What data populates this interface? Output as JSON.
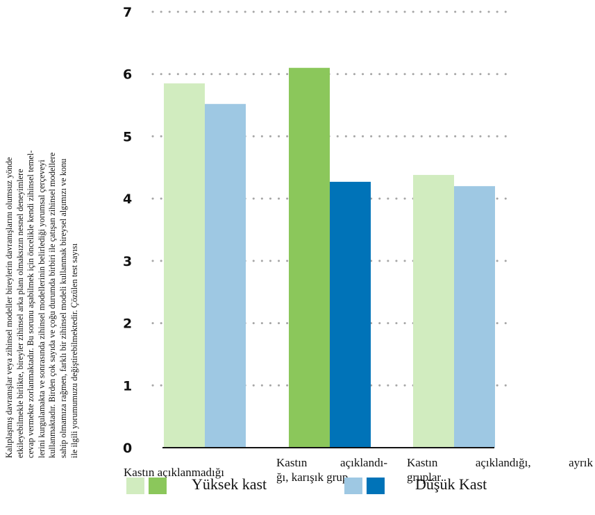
{
  "side_text": {
    "lines": [
      "Kalıplaşmış davranışlar veya zihinsel modeller bireylerin davranışlarını olumsuz yönde",
      "etkileyebilmekle birlikte, bireyler zihinsel arka planı olmaksızın nesnel deneyimlere",
      "cevap vermekte zorlanmaktadır. Bu sorunu aşabilmek için öncelikle kendi zihinsel temel-",
      "lerini kurgulamakta ve sonrasında zihinsel modellerinin belirlediği yorumsal çerçeveyi",
      "kullanmaktadır. Birden çok sayıda ve çoğu durumda birbiri ile çatışan zihinsel modellere",
      "sahip olmamıza rağmen, farklı bir zihinsel modeli kullanmak bireysel algımızı ve konu",
      "ile ilgili yorumumuzu değiştirebilmektedir. Çözülen test sayısı"
    ]
  },
  "chart_data": {
    "type": "bar",
    "categories": [
      "Kastın açıklanmadığı",
      "Kastın açıklandığı, karışık grup",
      "Kastın açıklandığı, ayrık gruplar"
    ],
    "category_label_lines": [
      [
        "Kastın açıklanmadığı"
      ],
      [
        "Kastın açıklandı-",
        "ğı, karışık grup"
      ],
      [
        "Kastın açıklandığı, ayrık",
        "gruplar"
      ]
    ],
    "series": [
      {
        "name": "Yüksek kast",
        "values": [
          5.85,
          6.1,
          4.38
        ]
      },
      {
        "name": "Düşük Kast",
        "values": [
          5.52,
          4.27,
          4.2
        ]
      }
    ],
    "bar_colors": [
      [
        "#d1ecbf",
        "#9ec8e3"
      ],
      [
        "#8bc75b",
        "#0073b8"
      ],
      [
        "#d1ecbf",
        "#9ec8e3"
      ]
    ],
    "ylim": [
      0,
      7
    ],
    "yticks": [
      "0",
      "1",
      "2",
      "3",
      "4",
      "5",
      "6",
      "7"
    ],
    "grid": true,
    "legend_position": "bottom"
  },
  "legend": {
    "items": [
      {
        "label": "Yüksek kast",
        "colors": [
          "#d1ecbf",
          "#8bc75b"
        ]
      },
      {
        "label": "Düşük Kast",
        "colors": [
          "#9ec8e3",
          "#0073b8"
        ]
      }
    ]
  }
}
